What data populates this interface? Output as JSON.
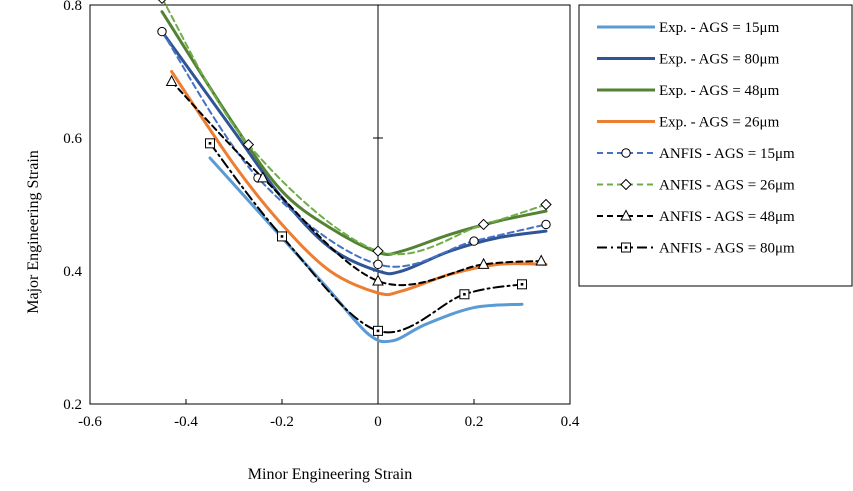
{
  "chart_data": {
    "type": "line",
    "xlabel": "Minor Engineering Strain",
    "ylabel": "Major Engineering Strain",
    "xlim": [
      -0.6,
      0.4
    ],
    "ylim": [
      0.2,
      0.8
    ],
    "xticks": [
      -0.6,
      -0.4,
      -0.2,
      0,
      0.2,
      0.4
    ],
    "yticks": [
      0.2,
      0.4,
      0.6,
      0.8
    ],
    "xtick_labels": [
      "-0.6",
      "-0.4",
      "-0.2",
      "0",
      "0.2",
      "0.4"
    ],
    "ytick_labels": [
      "0.2",
      "0.4",
      "0.6",
      "0.8"
    ],
    "grid": false,
    "legend_position": "right",
    "series": [
      {
        "name": "Exp. - AGS = 15μm",
        "color": "#5B9BD5",
        "style": "solid",
        "marker": "none",
        "x": [
          -0.35,
          -0.2,
          -0.1,
          -0.02,
          0.03,
          0.1,
          0.2,
          0.3
        ],
        "y": [
          0.57,
          0.45,
          0.37,
          0.305,
          0.295,
          0.32,
          0.345,
          0.35
        ]
      },
      {
        "name": "Exp. - AGS = 80μm",
        "color": "#2F5597",
        "style": "solid",
        "marker": "none",
        "x": [
          -0.45,
          -0.3,
          -0.2,
          -0.1,
          0,
          0.05,
          0.15,
          0.25,
          0.35
        ],
        "y": [
          0.76,
          0.61,
          0.51,
          0.435,
          0.4,
          0.4,
          0.43,
          0.45,
          0.46
        ]
      },
      {
        "name": "Exp. - AGS = 48μm",
        "color": "#548235",
        "style": "solid",
        "marker": "none",
        "x": [
          -0.45,
          -0.3,
          -0.2,
          -0.1,
          0,
          0.05,
          0.15,
          0.25,
          0.35
        ],
        "y": [
          0.79,
          0.62,
          0.52,
          0.465,
          0.428,
          0.43,
          0.455,
          0.475,
          0.49
        ]
      },
      {
        "name": "Exp. - AGS = 26μm",
        "color": "#ED7D31",
        "style": "solid",
        "marker": "none",
        "x": [
          -0.43,
          -0.3,
          -0.2,
          -0.1,
          0,
          0.05,
          0.15,
          0.25,
          0.35
        ],
        "y": [
          0.7,
          0.56,
          0.47,
          0.4,
          0.367,
          0.37,
          0.395,
          0.41,
          0.41
        ]
      },
      {
        "name": "ANFIS - AGS = 15μm",
        "color": "#4472C4",
        "style": "dashed",
        "marker": "circle",
        "x": [
          -0.45,
          -0.25,
          0,
          0.2,
          0.35
        ],
        "y": [
          0.76,
          0.54,
          0.41,
          0.445,
          0.47
        ]
      },
      {
        "name": "ANFIS - AGS = 26μm",
        "color": "#70AD47",
        "style": "dashed",
        "marker": "diamond",
        "x": [
          -0.45,
          -0.27,
          0,
          0.22,
          0.35
        ],
        "y": [
          0.81,
          0.59,
          0.43,
          0.47,
          0.5
        ]
      },
      {
        "name": "ANFIS - AGS = 48μm",
        "color": "#000000",
        "style": "dashed",
        "marker": "triangle",
        "x": [
          -0.43,
          -0.24,
          0,
          0.22,
          0.34
        ],
        "y": [
          0.685,
          0.54,
          0.385,
          0.41,
          0.415
        ]
      },
      {
        "name": "ANFIS - AGS = 80μm",
        "color": "#000000",
        "style": "dashdot",
        "marker": "square",
        "x": [
          -0.35,
          -0.2,
          0,
          0.18,
          0.3
        ],
        "y": [
          0.592,
          0.452,
          0.31,
          0.365,
          0.38
        ]
      }
    ]
  }
}
